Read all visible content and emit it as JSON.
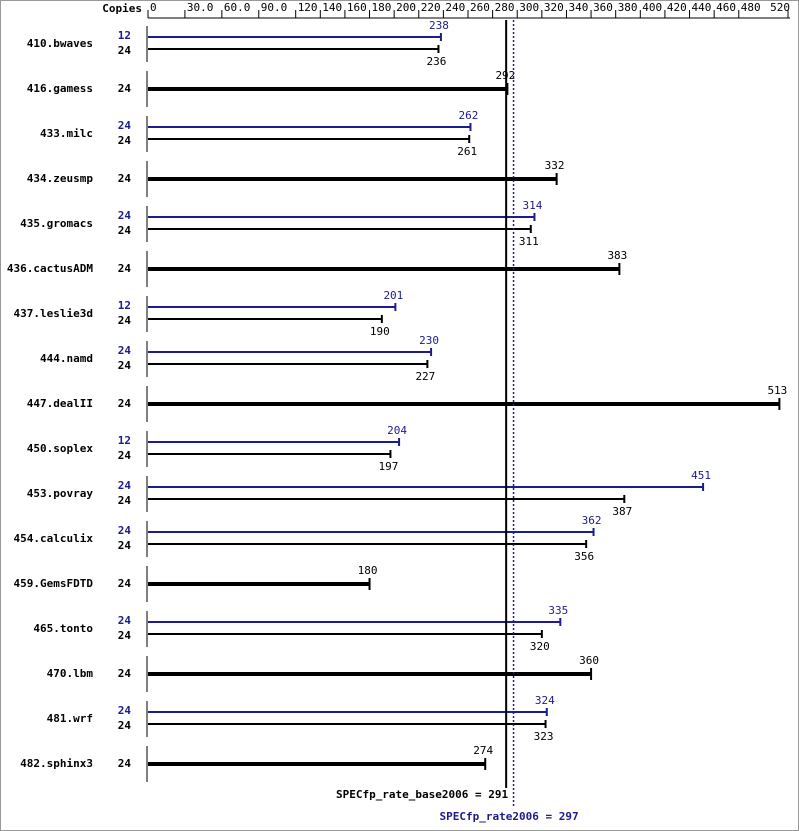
{
  "chart_data": {
    "type": "spec_bar",
    "copies_label": "Copies",
    "categories": [
      "410.bwaves",
      "416.gamess",
      "433.milc",
      "434.zeusmp",
      "435.gromacs",
      "436.cactusADM",
      "437.leslie3d",
      "444.namd",
      "447.dealII",
      "450.soplex",
      "453.povray",
      "454.calculix",
      "459.GemsFDTD",
      "465.tonto",
      "470.lbm",
      "481.wrf",
      "482.sphinx3"
    ],
    "base": {
      "color": "#000000",
      "copies": [
        24,
        24,
        24,
        24,
        24,
        24,
        24,
        24,
        24,
        24,
        24,
        24,
        24,
        24,
        24,
        24,
        24
      ],
      "values": [
        236,
        292,
        261,
        332,
        311,
        383,
        190,
        227,
        513,
        197,
        387,
        356,
        180,
        320,
        360,
        323,
        274
      ]
    },
    "peak": {
      "color": "#1c1c8c",
      "copies": [
        12,
        null,
        24,
        null,
        24,
        null,
        12,
        24,
        null,
        12,
        24,
        24,
        null,
        24,
        null,
        24,
        null
      ],
      "values": [
        238,
        null,
        262,
        null,
        314,
        null,
        201,
        230,
        null,
        204,
        451,
        362,
        null,
        335,
        null,
        324,
        null
      ]
    },
    "xlim": [
      0,
      520
    ],
    "xticks": [
      {
        "value": 0,
        "label": "0"
      },
      {
        "value": 30,
        "label": "30.0"
      },
      {
        "value": 60,
        "label": "60.0"
      },
      {
        "value": 90,
        "label": "90.0"
      },
      120,
      140,
      160,
      180,
      200,
      220,
      240,
      260,
      280,
      300,
      320,
      340,
      360,
      380,
      400,
      420,
      440,
      460,
      480,
      520
    ],
    "base_line": {
      "value": 291,
      "label": "SPECfp_rate_base2006 = 291"
    },
    "peak_line": {
      "value": 297,
      "label": "SPECfp_rate2006 = 297"
    }
  }
}
